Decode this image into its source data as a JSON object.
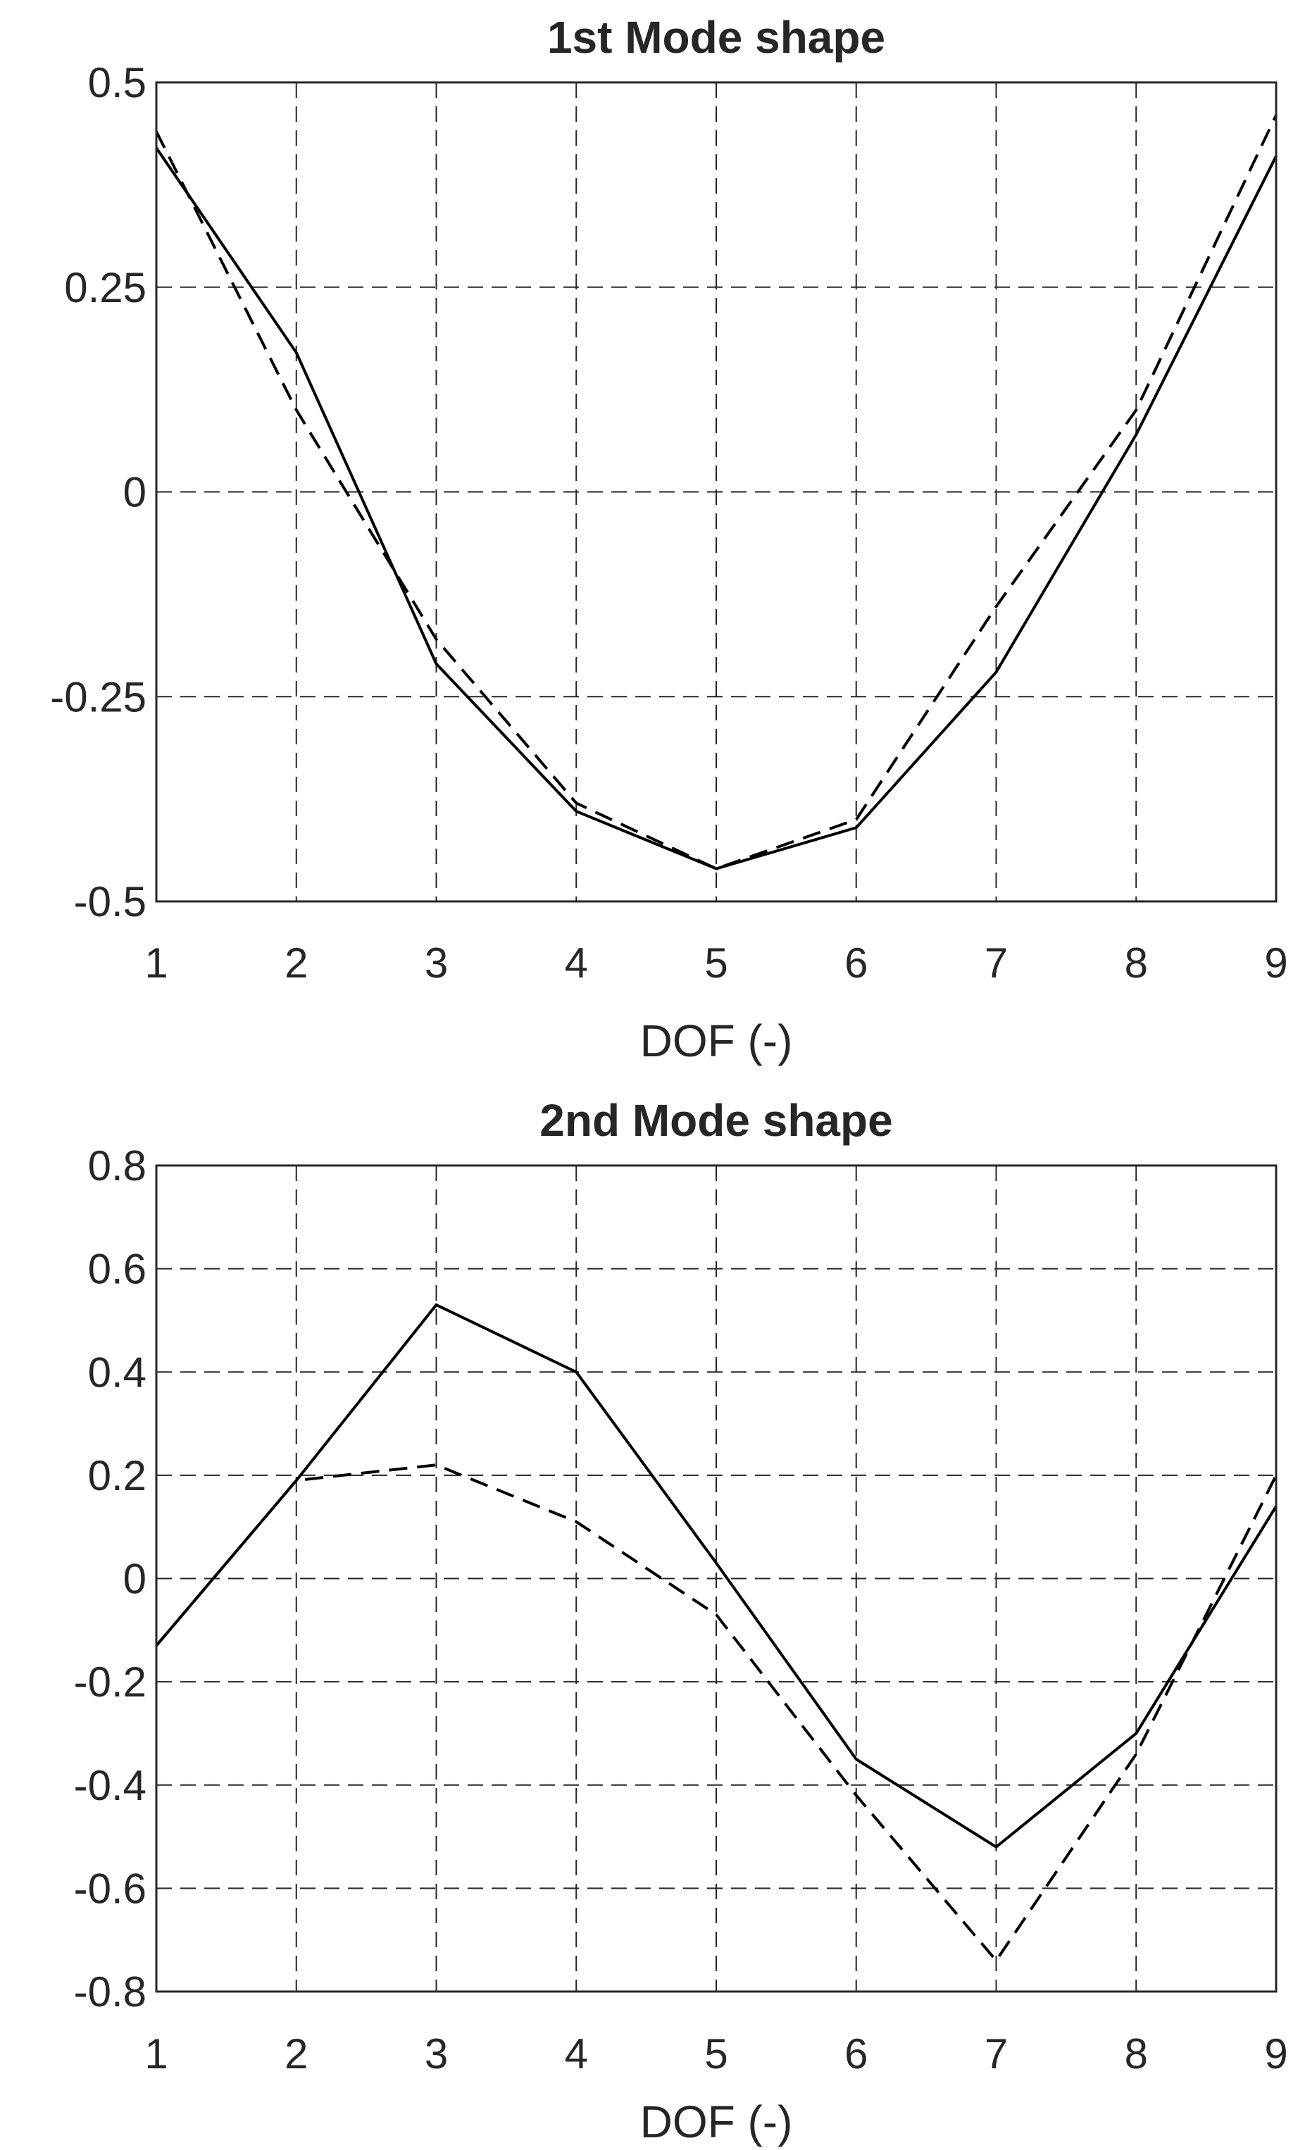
{
  "chart_data": [
    {
      "type": "line",
      "title": "1st Mode shape",
      "xlabel": "DOF (-)",
      "ylabel": "",
      "x": [
        1,
        2,
        3,
        4,
        5,
        6,
        7,
        8,
        9
      ],
      "xlim": [
        1,
        9
      ],
      "ylim": [
        -0.5,
        0.5
      ],
      "xticks": [
        1,
        2,
        3,
        4,
        5,
        6,
        7,
        8,
        9
      ],
      "xtick_labels": [
        "1",
        "2",
        "3",
        "4",
        "5",
        "6",
        "7",
        "8",
        "9"
      ],
      "yticks": [
        0.5,
        0.25,
        0,
        -0.25,
        -0.5
      ],
      "ytick_labels": [
        "0.5",
        "0.25",
        "0",
        "-0.25",
        "-0.5"
      ],
      "grid": true,
      "series": [
        {
          "style": "solid",
          "values": [
            0.42,
            0.17,
            -0.21,
            -0.39,
            -0.46,
            -0.41,
            -0.22,
            0.07,
            0.41
          ]
        },
        {
          "style": "dashed",
          "values": [
            0.44,
            0.1,
            -0.18,
            -0.38,
            -0.46,
            -0.4,
            -0.14,
            0.1,
            0.46
          ]
        }
      ]
    },
    {
      "type": "line",
      "title": "2nd Mode shape",
      "xlabel": "DOF (-)",
      "ylabel": "",
      "x": [
        1,
        2,
        3,
        4,
        5,
        6,
        7,
        8,
        9
      ],
      "xlim": [
        1,
        9
      ],
      "ylim": [
        -0.8,
        0.8
      ],
      "xticks": [
        1,
        2,
        3,
        4,
        5,
        6,
        7,
        8,
        9
      ],
      "xtick_labels": [
        "1",
        "2",
        "3",
        "4",
        "5",
        "6",
        "7",
        "8",
        "9"
      ],
      "yticks": [
        0.8,
        0.6,
        0.4,
        0.2,
        0,
        -0.2,
        -0.4,
        -0.6,
        -0.8
      ],
      "ytick_labels": [
        "0.8",
        "0.6",
        "0.4",
        "0.2",
        "0",
        "-0.2",
        "-0.4",
        "-0.6",
        "-0.8"
      ],
      "grid": true,
      "series": [
        {
          "style": "solid",
          "values": [
            -0.13,
            0.19,
            0.53,
            0.4,
            0.03,
            -0.35,
            -0.52,
            -0.3,
            0.14
          ]
        },
        {
          "style": "dashed",
          "values": [
            -0.13,
            0.19,
            0.22,
            0.11,
            -0.07,
            -0.42,
            -0.74,
            -0.34,
            0.2
          ]
        }
      ]
    }
  ]
}
